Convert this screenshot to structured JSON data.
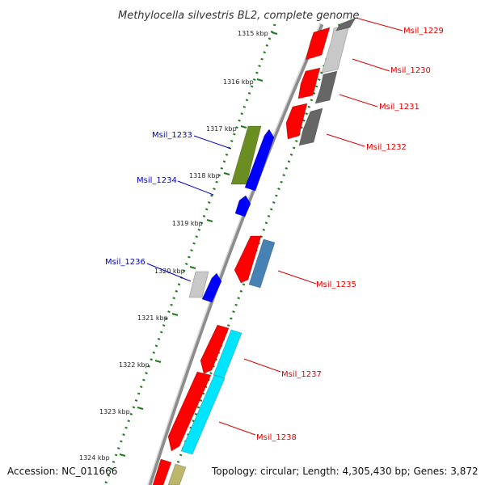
{
  "title": "Methylocella silvestris BL2, complete genome",
  "footer": {
    "accession": "Accession: NC_011666",
    "topology": "Topology: circular; Length: 4,305,430 bp; Genes: 3,872"
  },
  "colors": {
    "backbone": "#8c8c8c",
    "gc_track": "#1f7a1f",
    "red": "#ff0000",
    "dark_gray": "#666666",
    "light_gray": "#c8c8c8",
    "olive": "#6b8e23",
    "blue": "#0000ff",
    "steel": "#4682b4",
    "cyan": "#00e5ff",
    "khaki": "#bdb76b",
    "right_label": "#e00000",
    "left_label": "#0000cc"
  },
  "kbp_ticks": [
    {
      "label": "1315 kbp"
    },
    {
      "label": "1316 kbp"
    },
    {
      "label": "1317 kbp"
    },
    {
      "label": "1318 kbp"
    },
    {
      "label": "1319 kbp"
    },
    {
      "label": "1320 kbp"
    },
    {
      "label": "1321 kbp"
    },
    {
      "label": "1322 kbp"
    },
    {
      "label": "1323 kbp"
    },
    {
      "label": "1324 kbp"
    }
  ],
  "gene_labels": [
    {
      "text": "Msil_1229",
      "side": "right"
    },
    {
      "text": "Msil_1230",
      "side": "right"
    },
    {
      "text": "Msil_1231",
      "side": "right"
    },
    {
      "text": "Msil_1232",
      "side": "right"
    },
    {
      "text": "Msil_1233",
      "side": "left"
    },
    {
      "text": "Msil_1234",
      "side": "left"
    },
    {
      "text": "Msil_1235",
      "side": "right"
    },
    {
      "text": "Msil_1236",
      "side": "left"
    },
    {
      "text": "Msil_1237",
      "side": "right"
    },
    {
      "text": "Msil_1238",
      "side": "right"
    }
  ]
}
